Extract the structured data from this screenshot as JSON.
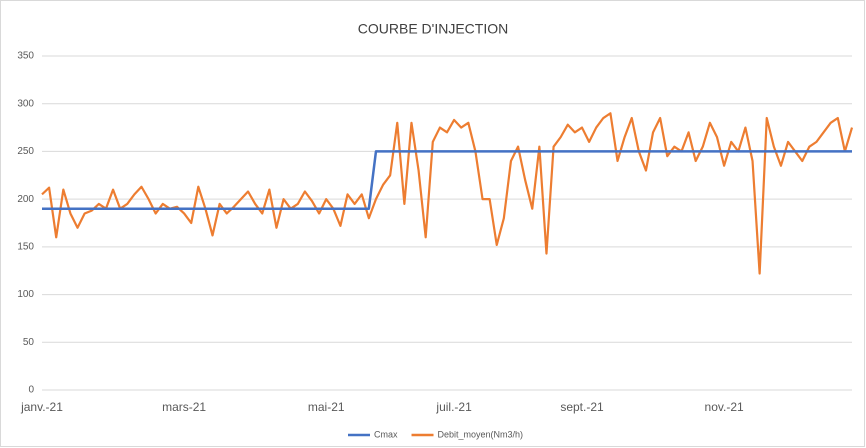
{
  "chart_data": {
    "type": "line",
    "title": "COURBE D'INJECTION",
    "categories": [
      "janv.-21",
      null,
      null,
      null,
      null,
      null,
      null,
      null,
      null,
      null,
      null,
      null,
      null,
      null,
      null,
      null,
      null,
      null,
      null,
      null,
      "mars-21",
      null,
      null,
      null,
      null,
      null,
      null,
      null,
      null,
      null,
      null,
      null,
      null,
      null,
      null,
      null,
      null,
      null,
      null,
      null,
      "mai-21",
      null,
      null,
      null,
      null,
      null,
      null,
      null,
      null,
      null,
      null,
      null,
      null,
      null,
      null,
      null,
      null,
      null,
      "juil.-21",
      null,
      null,
      null,
      null,
      null,
      null,
      null,
      null,
      null,
      null,
      null,
      null,
      null,
      null,
      null,
      null,
      null,
      "sept.-21",
      null,
      null,
      null,
      null,
      null,
      null,
      null,
      null,
      null,
      null,
      null,
      null,
      null,
      null,
      null,
      null,
      null,
      null,
      null,
      "nov.-21",
      null,
      null,
      null,
      null,
      null,
      null,
      null,
      null,
      null,
      null,
      null,
      null,
      null,
      null,
      null,
      null,
      null,
      null
    ],
    "series": [
      {
        "name": "Cmax",
        "color": "#4472c4",
        "values": [
          190,
          190,
          190,
          190,
          190,
          190,
          190,
          190,
          190,
          190,
          190,
          190,
          190,
          190,
          190,
          190,
          190,
          190,
          190,
          190,
          190,
          190,
          190,
          190,
          190,
          190,
          190,
          190,
          190,
          190,
          190,
          190,
          190,
          190,
          190,
          190,
          190,
          190,
          190,
          190,
          190,
          190,
          190,
          190,
          190,
          190,
          190,
          250,
          250,
          250,
          250,
          250,
          250,
          250,
          250,
          250,
          250,
          250,
          250,
          250,
          250,
          250,
          250,
          250,
          250,
          250,
          250,
          250,
          250,
          250,
          250,
          250,
          250,
          250,
          250,
          250,
          250,
          250,
          250,
          250,
          250,
          250,
          250,
          250,
          250,
          250,
          250,
          250,
          250,
          250,
          250,
          250,
          250,
          250,
          250,
          250,
          250,
          250,
          250,
          250,
          250,
          250,
          250,
          250,
          250,
          250,
          250,
          250,
          250,
          250,
          250,
          250,
          250,
          250,
          250
        ]
      },
      {
        "name": "Debit_moyen(Nm3/h)",
        "color": "#ed7d31",
        "values": [
          205,
          212,
          160,
          210,
          185,
          170,
          185,
          188,
          195,
          190,
          210,
          190,
          195,
          205,
          213,
          200,
          185,
          195,
          190,
          192,
          185,
          175,
          213,
          190,
          162,
          195,
          185,
          192,
          200,
          208,
          195,
          185,
          210,
          170,
          200,
          190,
          195,
          208,
          198,
          185,
          200,
          190,
          172,
          205,
          195,
          205,
          180,
          200,
          215,
          225,
          280,
          195,
          280,
          230,
          160,
          260,
          275,
          270,
          283,
          275,
          280,
          250,
          200,
          200,
          152,
          180,
          240,
          255,
          220,
          190,
          255,
          143,
          255,
          265,
          278,
          270,
          275,
          260,
          275,
          285,
          290,
          240,
          265,
          285,
          250,
          230,
          270,
          285,
          245,
          255,
          250,
          270,
          240,
          255,
          280,
          265,
          235,
          260,
          250,
          275,
          240,
          122,
          285,
          255,
          235,
          260,
          250,
          240,
          255,
          260,
          270,
          280,
          285,
          250,
          275
        ]
      }
    ],
    "ylim": [
      0,
      350
    ],
    "yticks": [
      0,
      50,
      100,
      150,
      200,
      250,
      300,
      350
    ],
    "grid": true
  }
}
